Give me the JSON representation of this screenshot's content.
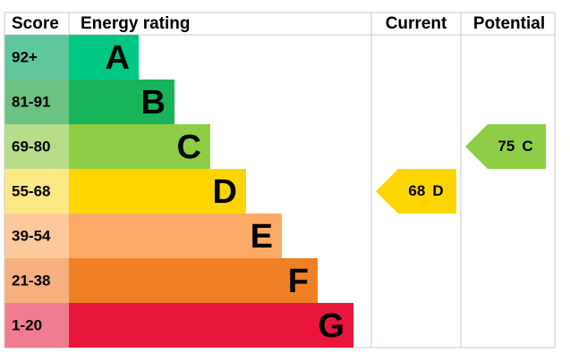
{
  "header": {
    "score": "Score",
    "rating": "Energy rating",
    "current": "Current",
    "potential": "Potential"
  },
  "bands": [
    {
      "score": "92+",
      "letter": "A"
    },
    {
      "score": "81-91",
      "letter": "B"
    },
    {
      "score": "69-80",
      "letter": "C"
    },
    {
      "score": "55-68",
      "letter": "D"
    },
    {
      "score": "39-54",
      "letter": "E"
    },
    {
      "score": "21-38",
      "letter": "F"
    },
    {
      "score": "1-20",
      "letter": "G"
    }
  ],
  "current": {
    "value": 68,
    "letter": "D"
  },
  "potential": {
    "value": 75,
    "letter": "C"
  }
}
